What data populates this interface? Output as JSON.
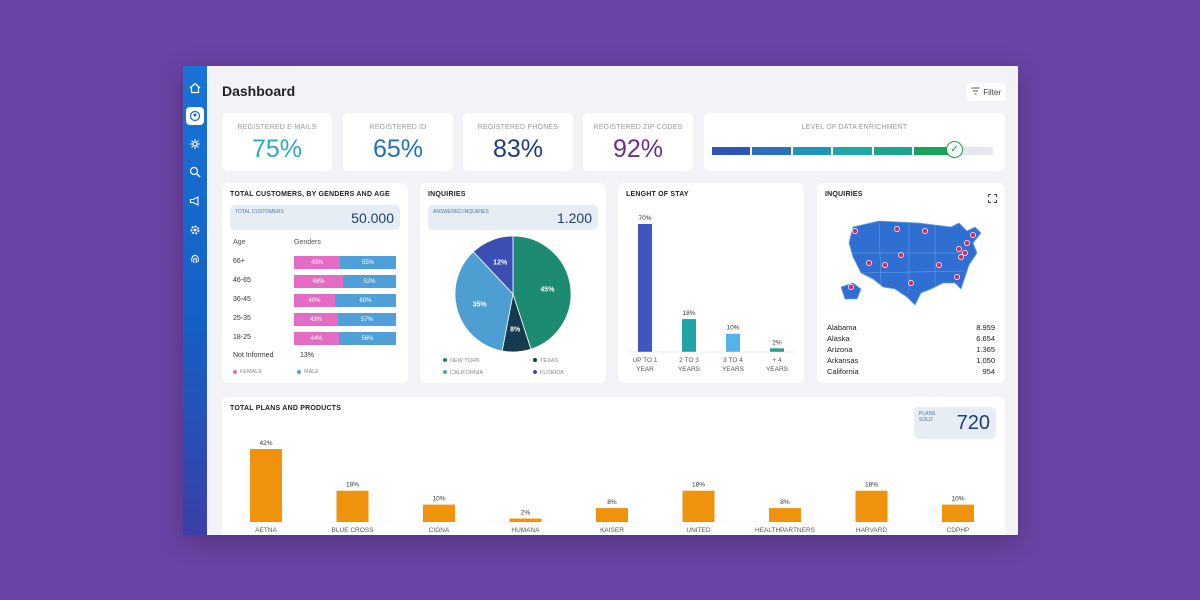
{
  "dashboard": {
    "title": "Dashboard",
    "filter_label": "Filter"
  },
  "sidebar_icons": [
    "home-icon",
    "profile-icon",
    "network-icon",
    "search-analytics-icon",
    "megaphone-icon",
    "settings-icon",
    "fingerprint-icon"
  ],
  "kpis": [
    {
      "label": "REGISTERED E-MAILS",
      "value": "75%",
      "color": "#28a9c9"
    },
    {
      "label": "REGISTERED ID",
      "value": "65%",
      "color": "#1f71c0"
    },
    {
      "label": "REGISTERED PHONES",
      "value": "83%",
      "color": "#1c3d7a"
    },
    {
      "label": "REGISTERED ZIP CODES",
      "value": "92%",
      "color": "#6b2e8f"
    }
  ],
  "enrichment": {
    "label": "LEVEL OF DATA ENRICHMENT",
    "segment_colors": [
      "#2f54b8",
      "#2b6fbd",
      "#2195b9",
      "#1fa6a6",
      "#1aa58a",
      "#15a35e"
    ],
    "filled_segments": 6,
    "total_segments": 7
  },
  "customers": {
    "title": "TOTAL CUSTOMERS, BY GENDERS AND AGE",
    "total_label": "TOTAL CUSTOMERS",
    "total_value": "50.000",
    "age_header": "Age",
    "gender_header": "Genders",
    "rows": [
      {
        "age": "66+",
        "female": "45%",
        "male": "55%",
        "female_frac": 0.45
      },
      {
        "age": "46-65",
        "female": "48%",
        "male": "52%",
        "female_frac": 0.48
      },
      {
        "age": "36-45",
        "female": "40%",
        "male": "60%",
        "female_frac": 0.4
      },
      {
        "age": "25-35",
        "female": "43%",
        "male": "57%",
        "female_frac": 0.43
      },
      {
        "age": "18-25",
        "female": "44%",
        "male": "56%",
        "female_frac": 0.44
      }
    ],
    "not_informed_label": "Not Informed",
    "not_informed_value": "13%",
    "legend_female": "FEMALE",
    "legend_male": "MALE",
    "female_color": "#e46cc4",
    "male_color": "#4f9fd8"
  },
  "inquiries": {
    "title": "INQUIRIES",
    "answered_label": "ANSWERED INQUIRIES",
    "answered_value": "1.200"
  },
  "stay": {
    "title": "LENGHT OF STAY"
  },
  "map": {
    "title": "INQUIRIES",
    "states": [
      {
        "name": "Alabama",
        "value": "8.959"
      },
      {
        "name": "Alaska",
        "value": "6.654"
      },
      {
        "name": "Arizona",
        "value": "1.365"
      },
      {
        "name": "Arkansas",
        "value": "1.050"
      },
      {
        "name": "California",
        "value": "954"
      }
    ]
  },
  "plans": {
    "title": "TOTAL PLANS AND PRODUCTS",
    "sold_label": "PLANS SOLD",
    "sold_value": "720"
  },
  "chart_data": [
    {
      "type": "pie",
      "title": "INQUIRIES",
      "categories": [
        "NEW YORK",
        "TEXAS",
        "CALIFORNIA",
        "FLORIDA"
      ],
      "values": [
        45,
        8,
        35,
        12
      ],
      "labels": [
        "45%",
        "8%",
        "35%",
        "12%"
      ],
      "colors": [
        "#1d8a72",
        "#143b4e",
        "#4d9fd2",
        "#3b4fb2"
      ],
      "legend": "bottom"
    },
    {
      "type": "bar",
      "title": "LENGHT OF STAY",
      "categories": [
        "UP TO 1 YEAR",
        "2 TO 3 YEARS",
        "3 TO 4 YEARS",
        "+ 4 YEARS"
      ],
      "values": [
        70,
        18,
        10,
        2
      ],
      "labels": [
        "70%",
        "18%",
        "10%",
        "2%"
      ],
      "colors": [
        "#3f56c0",
        "#1fa3a6",
        "#52b4ea",
        "#1fa38c"
      ]
    },
    {
      "type": "bar",
      "title": "TOTAL PLANS AND PRODUCTS",
      "categories": [
        "AETNA",
        "BLUE CROSS",
        "CIGNA",
        "HUMANA",
        "KAISER",
        "UNITED",
        "HEALTHPARTNERS",
        "HARVARD",
        "CDPHP"
      ],
      "values": [
        42,
        18,
        10,
        2,
        8,
        18,
        8,
        18,
        10
      ],
      "labels": [
        "42%",
        "18%",
        "10%",
        "2%",
        "8%",
        "18%",
        "8%",
        "18%",
        "10%"
      ],
      "color": "#f0920c"
    }
  ]
}
